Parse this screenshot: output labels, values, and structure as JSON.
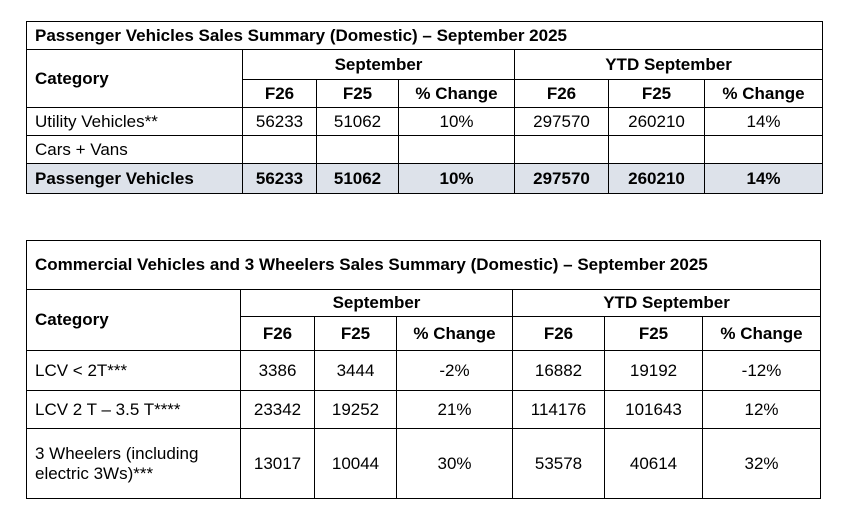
{
  "tables": [
    {
      "title": "Passenger Vehicles Sales Summary (Domestic) – September 2025",
      "category_label": "Category",
      "groups": [
        "September",
        "YTD September"
      ],
      "columns": [
        "F26",
        "F25",
        "% Change",
        "F26",
        "F25",
        "% Change"
      ],
      "rows": [
        {
          "label": "Utility Vehicles**",
          "cells": [
            "56233",
            "51062",
            "10%",
            "297570",
            "260210",
            "14%"
          ]
        },
        {
          "label": "Cars + Vans",
          "cells": [
            null,
            null,
            null,
            null,
            null,
            null
          ]
        },
        {
          "label": "Passenger Vehicles",
          "cells": [
            "56233",
            "51062",
            "10%",
            "297570",
            "260210",
            "14%"
          ]
        }
      ]
    },
    {
      "title": "Commercial Vehicles and 3 Wheelers Sales Summary (Domestic) – September 2025",
      "category_label": "Category",
      "groups": [
        "September",
        "YTD September"
      ],
      "columns": [
        "F26",
        "F25",
        "% Change",
        "F26",
        "F25",
        "% Change"
      ],
      "rows": [
        {
          "label": "LCV < 2T***",
          "cells": [
            "3386",
            "3444",
            "-2%",
            "16882",
            "19192",
            "-12%"
          ]
        },
        {
          "label": "LCV 2 T – 3.5 T****",
          "cells": [
            "23342",
            "19252",
            "21%",
            "114176",
            "101643",
            "12%"
          ]
        },
        {
          "label": "3 Wheelers (including electric 3Ws)***",
          "cells": [
            "13017",
            "10044",
            "30%",
            "53578",
            "40614",
            "32%"
          ]
        }
      ]
    }
  ]
}
